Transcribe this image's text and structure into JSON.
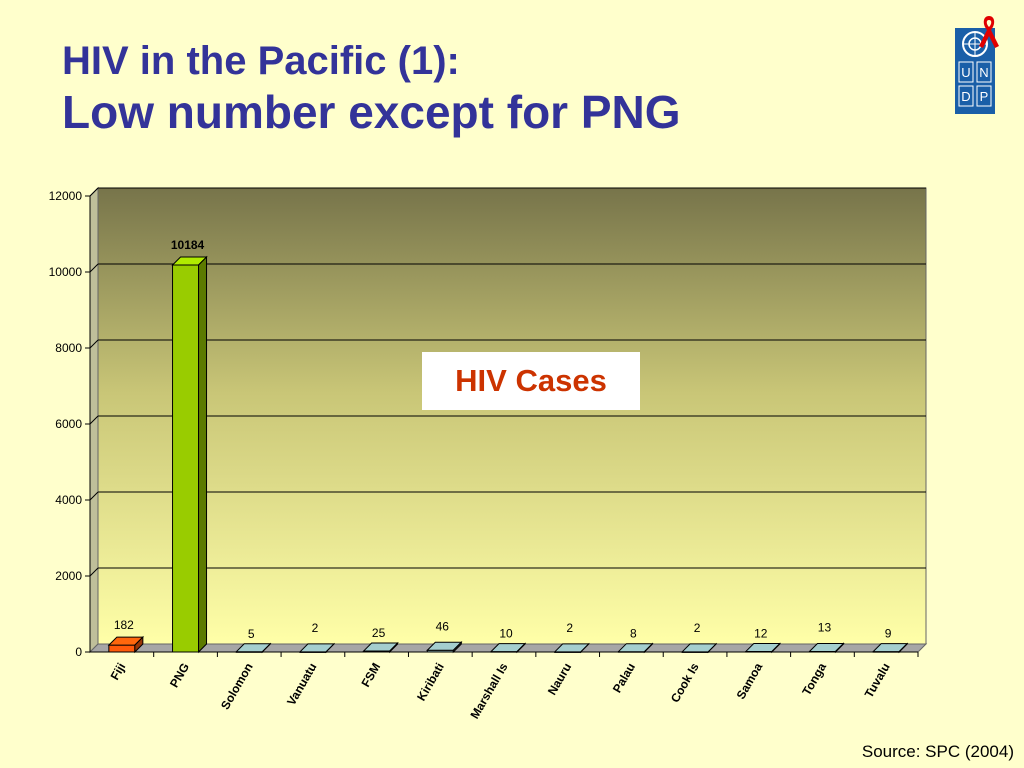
{
  "slide": {
    "title_line1": "HIV in the Pacific (1):",
    "title_line2": "Low number except for PNG",
    "source": "Source: SPC (2004)",
    "logo_letters": [
      "U",
      "N",
      "D",
      "P"
    ]
  },
  "colors": {
    "title": "#333399",
    "background": "#ffffcc",
    "fiji_bar": "#ff5a0a",
    "png_bar": "#99cc00",
    "other_bars": "#8fb3b3",
    "legend_text": "#cc3300"
  },
  "chart_data": {
    "type": "bar",
    "legend_label": "HIV Cases",
    "categories": [
      "Fiji",
      "PNG",
      "Solomon",
      "Vanuatu",
      "FSM",
      "Kiribati",
      "Marshall Is",
      "Nauru",
      "Palau",
      "Cook Is",
      "Samoa",
      "Tonga",
      "Tuvalu"
    ],
    "values": [
      182,
      10184,
      5,
      2,
      25,
      46,
      10,
      2,
      8,
      2,
      12,
      13,
      9
    ],
    "ylim": [
      0,
      12000
    ],
    "yticks": [
      0,
      2000,
      4000,
      6000,
      8000,
      10000,
      12000
    ],
    "grid": true
  }
}
